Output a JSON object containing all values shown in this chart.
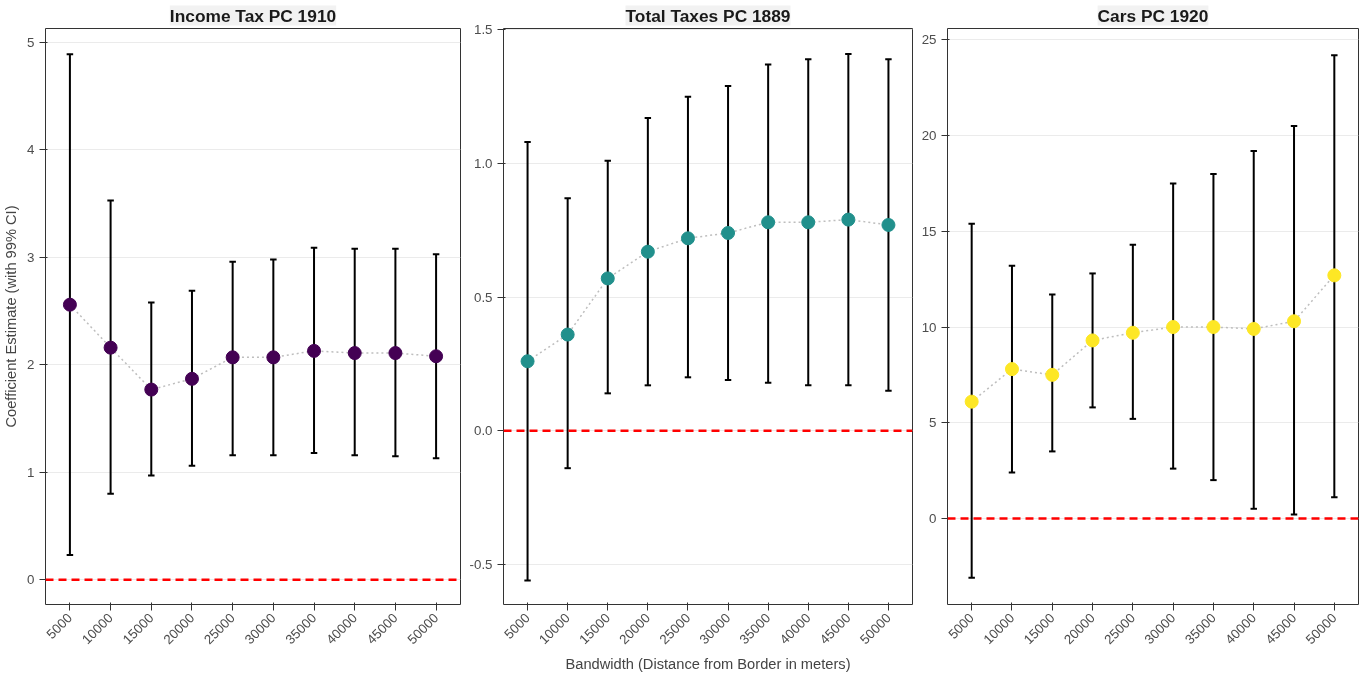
{
  "chart_data": [
    {
      "type": "scatter",
      "title": "Income Tax PC 1910",
      "ylabel": "Coefficient Estimate (with 99% CI)",
      "categories": [
        "5000",
        "10000",
        "15000",
        "20000",
        "25000",
        "30000",
        "35000",
        "40000",
        "45000",
        "50000"
      ],
      "series": [
        {
          "type": "line",
          "color": "#bebebe",
          "line_style": "dotted",
          "marker": "none",
          "values": [
            2.56,
            2.16,
            1.77,
            1.87,
            2.07,
            2.07,
            2.13,
            2.11,
            2.11,
            2.08
          ]
        },
        {
          "color": "#440154",
          "marker": "circle",
          "values": [
            2.56,
            2.16,
            1.77,
            1.87,
            2.07,
            2.07,
            2.13,
            2.11,
            2.11,
            2.08
          ],
          "errors": [
            [
              0.23,
              4.89
            ],
            [
              0.8,
              3.53
            ],
            [
              0.97,
              2.58
            ],
            [
              1.06,
              2.69
            ],
            [
              1.16,
              2.96
            ],
            [
              1.16,
              2.98
            ],
            [
              1.18,
              3.09
            ],
            [
              1.16,
              3.08
            ],
            [
              1.15,
              3.08
            ],
            [
              1.13,
              3.03
            ]
          ]
        }
      ],
      "ylim": [
        -0.23,
        5.13
      ],
      "yticks": [
        0,
        1,
        2,
        3,
        4,
        5
      ],
      "grid": "y",
      "ref_lines": [
        {
          "axis": "y",
          "value": 0,
          "color": "#ff0000",
          "line_style": "dashed"
        }
      ]
    },
    {
      "type": "scatter",
      "title": "Total Taxes PC 1889",
      "xlabel": "Bandwidth (Distance from Border in meters)",
      "categories": [
        "5000",
        "10000",
        "15000",
        "20000",
        "25000",
        "30000",
        "35000",
        "40000",
        "45000",
        "50000"
      ],
      "series": [
        {
          "type": "line",
          "color": "#bebebe",
          "line_style": "dotted",
          "marker": "none",
          "values": [
            0.26,
            0.36,
            0.57,
            0.67,
            0.72,
            0.74,
            0.78,
            0.78,
            0.79,
            0.77
          ]
        },
        {
          "color": "#21908c",
          "marker": "circle",
          "values": [
            0.26,
            0.36,
            0.57,
            0.67,
            0.72,
            0.74,
            0.78,
            0.78,
            0.79,
            0.77
          ],
          "errors": [
            [
              -0.56,
              1.08
            ],
            [
              -0.14,
              0.87
            ],
            [
              0.14,
              1.01
            ],
            [
              0.17,
              1.17
            ],
            [
              0.2,
              1.25
            ],
            [
              0.19,
              1.29
            ],
            [
              0.18,
              1.37
            ],
            [
              0.17,
              1.39
            ],
            [
              0.17,
              1.41
            ],
            [
              0.15,
              1.39
            ]
          ]
        }
      ],
      "ylim": [
        -0.65,
        1.505
      ],
      "yticks": [
        {
          "value": -0.5,
          "label": "-0.5"
        },
        {
          "value": 0,
          "label": "0.0"
        },
        {
          "value": 0.5,
          "label": "0.5"
        },
        {
          "value": 1,
          "label": "1.0"
        },
        {
          "value": 1.5,
          "label": "1.5"
        }
      ],
      "grid": "y",
      "ref_lines": [
        {
          "axis": "y",
          "value": 0,
          "color": "#ff0000",
          "line_style": "dashed"
        }
      ]
    },
    {
      "type": "scatter",
      "title": "Cars PC 1920",
      "categories": [
        "5000",
        "10000",
        "15000",
        "20000",
        "25000",
        "30000",
        "35000",
        "40000",
        "45000",
        "50000"
      ],
      "series": [
        {
          "type": "line",
          "color": "#bebebe",
          "line_style": "dotted",
          "marker": "none",
          "values": [
            6.1,
            7.8,
            7.5,
            9.3,
            9.7,
            10.0,
            10.0,
            9.9,
            10.3,
            12.7
          ]
        },
        {
          "color": "#fde725",
          "marker": "circle",
          "values": [
            6.1,
            7.8,
            7.5,
            9.3,
            9.7,
            10.0,
            10.0,
            9.9,
            10.3,
            12.7
          ],
          "errors": [
            [
              -3.1,
              15.4
            ],
            [
              2.4,
              13.2
            ],
            [
              3.5,
              11.7
            ],
            [
              5.8,
              12.8
            ],
            [
              5.2,
              14.3
            ],
            [
              2.6,
              17.5
            ],
            [
              2.0,
              18.0
            ],
            [
              0.5,
              19.2
            ],
            [
              0.2,
              20.5
            ],
            [
              1.1,
              24.2
            ]
          ]
        }
      ],
      "ylim": [
        -4.5,
        25.6
      ],
      "yticks": [
        0,
        5,
        10,
        15,
        20,
        25
      ],
      "grid": "y",
      "ref_lines": [
        {
          "axis": "y",
          "value": 0,
          "color": "#ff0000",
          "line_style": "dashed"
        }
      ]
    }
  ]
}
